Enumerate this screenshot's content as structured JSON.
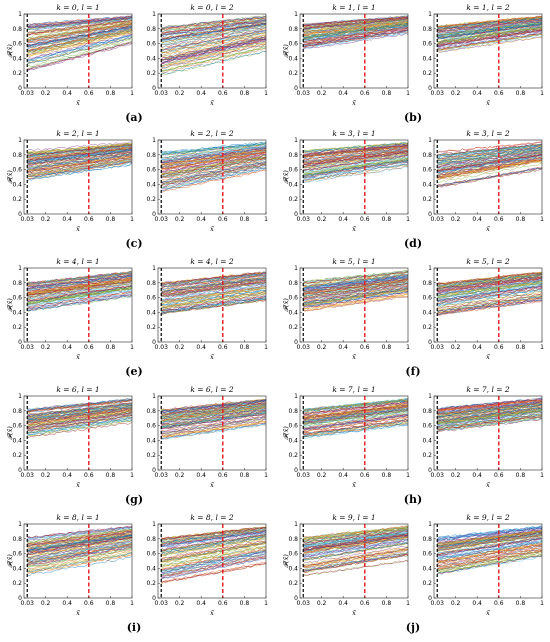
{
  "chart_data": [
    {
      "id": "a-l1",
      "type": "line",
      "title": "k = 0, l = 1",
      "xlabel": "x̃",
      "ylabel": "𝓕(x̃)",
      "xlim": [
        0.03,
        1
      ],
      "ylim": [
        0,
        1
      ],
      "xticks": [
        "0.03",
        "0.2",
        "0.4",
        "0.6",
        "0.8",
        "1"
      ],
      "yticks": [
        "0",
        "0.2",
        "0.4",
        "0.6",
        "0.8",
        "1"
      ],
      "vlines": [
        {
          "x": 0.03,
          "style": "black dashed"
        },
        {
          "x": 0.6,
          "style": "red dashed"
        }
      ],
      "band": {
        "low_start": 0.22,
        "low_end": 0.58,
        "high_start": 0.86,
        "high_end": 0.97
      },
      "n_series": "many"
    },
    {
      "id": "a-l2",
      "type": "line",
      "title": "k = 0, l = 2",
      "xlabel": "x̃",
      "ylabel": "",
      "xlim": [
        0.03,
        1
      ],
      "ylim": [
        0,
        1
      ],
      "xticks": [
        "0.03",
        "0.2",
        "0.4",
        "0.6",
        "0.8",
        "1"
      ],
      "yticks": [
        "0",
        "0.2",
        "0.4",
        "0.6",
        "0.8",
        "1"
      ],
      "vlines": [
        {
          "x": 0.03,
          "style": "black dashed"
        },
        {
          "x": 0.6,
          "style": "red dashed"
        }
      ],
      "band": {
        "low_start": 0.15,
        "low_end": 0.45,
        "high_start": 0.82,
        "high_end": 0.97
      },
      "n_series": "many"
    },
    {
      "id": "b-l1",
      "type": "line",
      "title": "k = 1, l = 1",
      "xlabel": "x̃",
      "ylabel": "𝓕(x̃)",
      "xlim": [
        0.03,
        1
      ],
      "ylim": [
        0,
        1
      ],
      "xticks": [
        "0.03",
        "0.2",
        "0.4",
        "0.6",
        "0.8",
        "1"
      ],
      "yticks": [
        "0",
        "0.2",
        "0.4",
        "0.6",
        "0.8",
        "1"
      ],
      "vlines": [
        {
          "x": 0.03,
          "style": "black dashed"
        },
        {
          "x": 0.6,
          "style": "red dashed"
        }
      ],
      "band": {
        "low_start": 0.52,
        "low_end": 0.72,
        "high_start": 0.86,
        "high_end": 0.97
      },
      "n_series": "many"
    },
    {
      "id": "b-l2",
      "type": "line",
      "title": "k = 1, l = 2",
      "xlabel": "x̃",
      "ylabel": "",
      "xlim": [
        0.03,
        1
      ],
      "ylim": [
        0,
        1
      ],
      "xticks": [
        "0.03",
        "0.2",
        "0.4",
        "0.6",
        "0.8",
        "1"
      ],
      "yticks": [
        "0",
        "0.2",
        "0.4",
        "0.6",
        "0.8",
        "1"
      ],
      "vlines": [
        {
          "x": 0.03,
          "style": "black dashed"
        },
        {
          "x": 0.6,
          "style": "red dashed"
        }
      ],
      "band": {
        "low_start": 0.48,
        "low_end": 0.68,
        "high_start": 0.84,
        "high_end": 0.97
      },
      "n_series": "many"
    },
    {
      "id": "c-l1",
      "type": "line",
      "title": "k = 2, l = 1",
      "xlabel": "x̃",
      "ylabel": "𝓕(x̃)",
      "xlim": [
        0.03,
        1
      ],
      "ylim": [
        0,
        1
      ],
      "xticks": [
        "0.03",
        "0.2",
        "0.4",
        "0.6",
        "0.8",
        "1"
      ],
      "yticks": [
        "0",
        "0.2",
        "0.4",
        "0.6",
        "0.8",
        "1"
      ],
      "vlines": [
        {
          "x": 0.03,
          "style": "black dashed"
        },
        {
          "x": 0.6,
          "style": "red dashed"
        }
      ],
      "band": {
        "low_start": 0.45,
        "low_end": 0.65,
        "high_start": 0.86,
        "high_end": 0.97
      },
      "n_series": "many"
    },
    {
      "id": "c-l2",
      "type": "line",
      "title": "k = 2, l = 2",
      "xlabel": "x̃",
      "ylabel": "",
      "xlim": [
        0.03,
        1
      ],
      "ylim": [
        0,
        1
      ],
      "xticks": [
        "0.03",
        "0.2",
        "0.4",
        "0.6",
        "0.8",
        "1"
      ],
      "yticks": [
        "0",
        "0.2",
        "0.4",
        "0.6",
        "0.8",
        "1"
      ],
      "vlines": [
        {
          "x": 0.03,
          "style": "black dashed"
        },
        {
          "x": 0.6,
          "style": "red dashed"
        }
      ],
      "band": {
        "low_start": 0.28,
        "low_end": 0.55,
        "high_start": 0.84,
        "high_end": 0.97
      },
      "n_series": "many"
    },
    {
      "id": "d-l1",
      "type": "line",
      "title": "k = 3, l = 1",
      "xlabel": "x̃",
      "ylabel": "𝓕(x̃)",
      "xlim": [
        0.03,
        1
      ],
      "ylim": [
        0,
        1
      ],
      "xticks": [
        "0.03",
        "0.2",
        "0.4",
        "0.6",
        "0.8",
        "1"
      ],
      "yticks": [
        "0",
        "0.2",
        "0.4",
        "0.6",
        "0.8",
        "1"
      ],
      "vlines": [
        {
          "x": 0.03,
          "style": "black dashed"
        },
        {
          "x": 0.6,
          "style": "red dashed"
        }
      ],
      "band": {
        "low_start": 0.42,
        "low_end": 0.62,
        "high_start": 0.86,
        "high_end": 0.97
      },
      "n_series": "many"
    },
    {
      "id": "d-l2",
      "type": "line",
      "title": "k = 3, l = 2",
      "xlabel": "x̃",
      "ylabel": "",
      "xlim": [
        0.03,
        1
      ],
      "ylim": [
        0,
        1
      ],
      "xticks": [
        "0.03",
        "0.2",
        "0.4",
        "0.6",
        "0.8",
        "1"
      ],
      "yticks": [
        "0",
        "0.2",
        "0.4",
        "0.6",
        "0.8",
        "1"
      ],
      "vlines": [
        {
          "x": 0.03,
          "style": "black dashed"
        },
        {
          "x": 0.6,
          "style": "red dashed"
        }
      ],
      "band": {
        "low_start": 0.35,
        "low_end": 0.58,
        "high_start": 0.84,
        "high_end": 0.97
      },
      "n_series": "many"
    },
    {
      "id": "e-l1",
      "type": "line",
      "title": "k = 4, l = 1",
      "xlabel": "x̃",
      "ylabel": "𝓕(x̃)",
      "xlim": [
        0.03,
        1
      ],
      "ylim": [
        0,
        1
      ],
      "xticks": [
        "0.03",
        "0.2",
        "0.4",
        "0.6",
        "0.8",
        "1"
      ],
      "yticks": [
        "0",
        "0.2",
        "0.4",
        "0.6",
        "0.8",
        "1"
      ],
      "vlines": [
        {
          "x": 0.03,
          "style": "black dashed"
        },
        {
          "x": 0.6,
          "style": "red dashed"
        }
      ],
      "band": {
        "low_start": 0.4,
        "low_end": 0.58,
        "high_start": 0.8,
        "high_end": 0.95
      },
      "n_series": "many"
    },
    {
      "id": "e-l2",
      "type": "line",
      "title": "k = 4, l = 2",
      "xlabel": "x̃",
      "ylabel": "",
      "xlim": [
        0.03,
        1
      ],
      "ylim": [
        0,
        1
      ],
      "xticks": [
        "0.03",
        "0.2",
        "0.4",
        "0.6",
        "0.8",
        "1"
      ],
      "yticks": [
        "0",
        "0.2",
        "0.4",
        "0.6",
        "0.8",
        "1"
      ],
      "vlines": [
        {
          "x": 0.03,
          "style": "black dashed"
        },
        {
          "x": 0.6,
          "style": "red dashed"
        }
      ],
      "band": {
        "low_start": 0.38,
        "low_end": 0.55,
        "high_start": 0.8,
        "high_end": 0.95
      },
      "n_series": "many"
    },
    {
      "id": "f-l1",
      "type": "line",
      "title": "k = 5, l = 1",
      "xlabel": "x̃",
      "ylabel": "𝓕(x̃)",
      "xlim": [
        0.03,
        1
      ],
      "ylim": [
        0,
        1
      ],
      "xticks": [
        "0.03",
        "0.2",
        "0.4",
        "0.6",
        "0.8",
        "1"
      ],
      "yticks": [
        "0",
        "0.2",
        "0.4",
        "0.6",
        "0.8",
        "1"
      ],
      "vlines": [
        {
          "x": 0.03,
          "style": "black dashed"
        },
        {
          "x": 0.6,
          "style": "red dashed"
        }
      ],
      "band": {
        "low_start": 0.4,
        "low_end": 0.58,
        "high_start": 0.82,
        "high_end": 0.96
      },
      "n_series": "many"
    },
    {
      "id": "f-l2",
      "type": "line",
      "title": "k = 5, l = 2",
      "xlabel": "x̃",
      "ylabel": "",
      "xlim": [
        0.03,
        1
      ],
      "ylim": [
        0,
        1
      ],
      "xticks": [
        "0.03",
        "0.2",
        "0.4",
        "0.6",
        "0.8",
        "1"
      ],
      "yticks": [
        "0",
        "0.2",
        "0.4",
        "0.6",
        "0.8",
        "1"
      ],
      "vlines": [
        {
          "x": 0.03,
          "style": "black dashed"
        },
        {
          "x": 0.6,
          "style": "red dashed"
        }
      ],
      "band": {
        "low_start": 0.35,
        "low_end": 0.52,
        "high_start": 0.8,
        "high_end": 0.95
      },
      "n_series": "many"
    },
    {
      "id": "g-l1",
      "type": "line",
      "title": "k = 6, l = 1",
      "xlabel": "x̃",
      "ylabel": "𝓕(x̃)",
      "xlim": [
        0.03,
        1
      ],
      "ylim": [
        0,
        1
      ],
      "xticks": [
        "0.03",
        "0.2",
        "0.4",
        "0.6",
        "0.8",
        "1"
      ],
      "yticks": [
        "0",
        "0.2",
        "0.4",
        "0.6",
        "0.8",
        "1"
      ],
      "vlines": [
        {
          "x": 0.03,
          "style": "black dashed"
        },
        {
          "x": 0.6,
          "style": "red dashed"
        }
      ],
      "band": {
        "low_start": 0.42,
        "low_end": 0.6,
        "high_start": 0.82,
        "high_end": 0.96
      },
      "n_series": "many"
    },
    {
      "id": "g-l2",
      "type": "line",
      "title": "k = 6, l = 2",
      "xlabel": "x̃",
      "ylabel": "",
      "xlim": [
        0.03,
        1
      ],
      "ylim": [
        0,
        1
      ],
      "xticks": [
        "0.03",
        "0.2",
        "0.4",
        "0.6",
        "0.8",
        "1"
      ],
      "yticks": [
        "0",
        "0.2",
        "0.4",
        "0.6",
        "0.8",
        "1"
      ],
      "vlines": [
        {
          "x": 0.03,
          "style": "black dashed"
        },
        {
          "x": 0.6,
          "style": "red dashed"
        }
      ],
      "band": {
        "low_start": 0.4,
        "low_end": 0.58,
        "high_start": 0.82,
        "high_end": 0.96
      },
      "n_series": "many"
    },
    {
      "id": "h-l1",
      "type": "line",
      "title": "k = 7, l = 1",
      "xlabel": "x̃",
      "ylabel": "𝓕(x̃)",
      "xlim": [
        0.03,
        1
      ],
      "ylim": [
        0,
        1
      ],
      "xticks": [
        "0.03",
        "0.2",
        "0.4",
        "0.6",
        "0.8",
        "1"
      ],
      "yticks": [
        "0",
        "0.2",
        "0.4",
        "0.6",
        "0.8",
        "1"
      ],
      "vlines": [
        {
          "x": 0.03,
          "style": "black dashed"
        },
        {
          "x": 0.6,
          "style": "red dashed"
        }
      ],
      "band": {
        "low_start": 0.42,
        "low_end": 0.58,
        "high_start": 0.82,
        "high_end": 0.96
      },
      "n_series": "many"
    },
    {
      "id": "h-l2",
      "type": "line",
      "title": "k = 7, l = 2",
      "xlabel": "x̃",
      "ylabel": "",
      "xlim": [
        0.03,
        1
      ],
      "ylim": [
        0,
        1
      ],
      "xticks": [
        "0.03",
        "0.2",
        "0.4",
        "0.6",
        "0.8",
        "1"
      ],
      "yticks": [
        "0",
        "0.2",
        "0.4",
        "0.6",
        "0.8",
        "1"
      ],
      "vlines": [
        {
          "x": 0.03,
          "style": "black dashed"
        },
        {
          "x": 0.6,
          "style": "red dashed"
        }
      ],
      "band": {
        "low_start": 0.5,
        "low_end": 0.65,
        "high_start": 0.84,
        "high_end": 0.97
      },
      "n_series": "many"
    },
    {
      "id": "i-l1",
      "type": "line",
      "title": "k = 8, l = 1",
      "xlabel": "x̃",
      "ylabel": "𝓕(x̃)",
      "xlim": [
        0.03,
        1
      ],
      "ylim": [
        0,
        1
      ],
      "xticks": [
        "0.03",
        "0.2",
        "0.4",
        "0.6",
        "0.8",
        "1"
      ],
      "yticks": [
        "0",
        "0.2",
        "0.4",
        "0.6",
        "0.8",
        "1"
      ],
      "vlines": [
        {
          "x": 0.03,
          "style": "black dashed"
        },
        {
          "x": 0.6,
          "style": "red dashed"
        }
      ],
      "band": {
        "low_start": 0.28,
        "low_end": 0.5,
        "high_start": 0.82,
        "high_end": 0.97
      },
      "n_series": "many"
    },
    {
      "id": "i-l2",
      "type": "line",
      "title": "k = 8, l = 2",
      "xlabel": "x̃",
      "ylabel": "",
      "xlim": [
        0.03,
        1
      ],
      "ylim": [
        0,
        1
      ],
      "xticks": [
        "0.03",
        "0.2",
        "0.4",
        "0.6",
        "0.8",
        "1"
      ],
      "yticks": [
        "0",
        "0.2",
        "0.4",
        "0.6",
        "0.8",
        "1"
      ],
      "vlines": [
        {
          "x": 0.03,
          "style": "black dashed"
        },
        {
          "x": 0.6,
          "style": "red dashed"
        }
      ],
      "band": {
        "low_start": 0.2,
        "low_end": 0.45,
        "high_start": 0.82,
        "high_end": 0.97
      },
      "n_series": "many"
    },
    {
      "id": "j-l1",
      "type": "line",
      "title": "k = 9, l = 1",
      "xlabel": "x̃",
      "ylabel": "𝓕(x̃)",
      "xlim": [
        0.03,
        1
      ],
      "ylim": [
        0,
        1
      ],
      "xticks": [
        "0.03",
        "0.2",
        "0.4",
        "0.6",
        "0.8",
        "1"
      ],
      "yticks": [
        "0",
        "0.2",
        "0.4",
        "0.6",
        "0.8",
        "1"
      ],
      "vlines": [
        {
          "x": 0.03,
          "style": "black dashed"
        },
        {
          "x": 0.6,
          "style": "red dashed"
        }
      ],
      "band": {
        "low_start": 0.3,
        "low_end": 0.5,
        "high_start": 0.82,
        "high_end": 0.97
      },
      "n_series": "many"
    },
    {
      "id": "j-l2",
      "type": "line",
      "title": "k = 9, l = 2",
      "xlabel": "x̃",
      "ylabel": "",
      "xlim": [
        0.03,
        1
      ],
      "ylim": [
        0,
        1
      ],
      "xticks": [
        "0.03",
        "0.2",
        "0.4",
        "0.6",
        "0.8",
        "1"
      ],
      "yticks": [
        "0",
        "0.2",
        "0.4",
        "0.6",
        "0.8",
        "1"
      ],
      "vlines": [
        {
          "x": 0.03,
          "style": "black dashed"
        },
        {
          "x": 0.6,
          "style": "red dashed"
        }
      ],
      "band": {
        "low_start": 0.3,
        "low_end": 0.52,
        "high_start": 0.82,
        "high_end": 0.97
      },
      "n_series": "many"
    }
  ],
  "sublabels": [
    "(a)",
    "(b)",
    "(c)",
    "(d)",
    "(e)",
    "(f)",
    "(g)",
    "(h)",
    "(i)",
    "(j)"
  ],
  "colors": {
    "series_palette": [
      "#0072BD",
      "#D95319",
      "#EDB120",
      "#7E2F8E",
      "#77AC30",
      "#4DBEEE",
      "#A2142F"
    ],
    "red_dashed": "#e8161b",
    "black_dashed": "#000000",
    "axis": "#222222"
  }
}
